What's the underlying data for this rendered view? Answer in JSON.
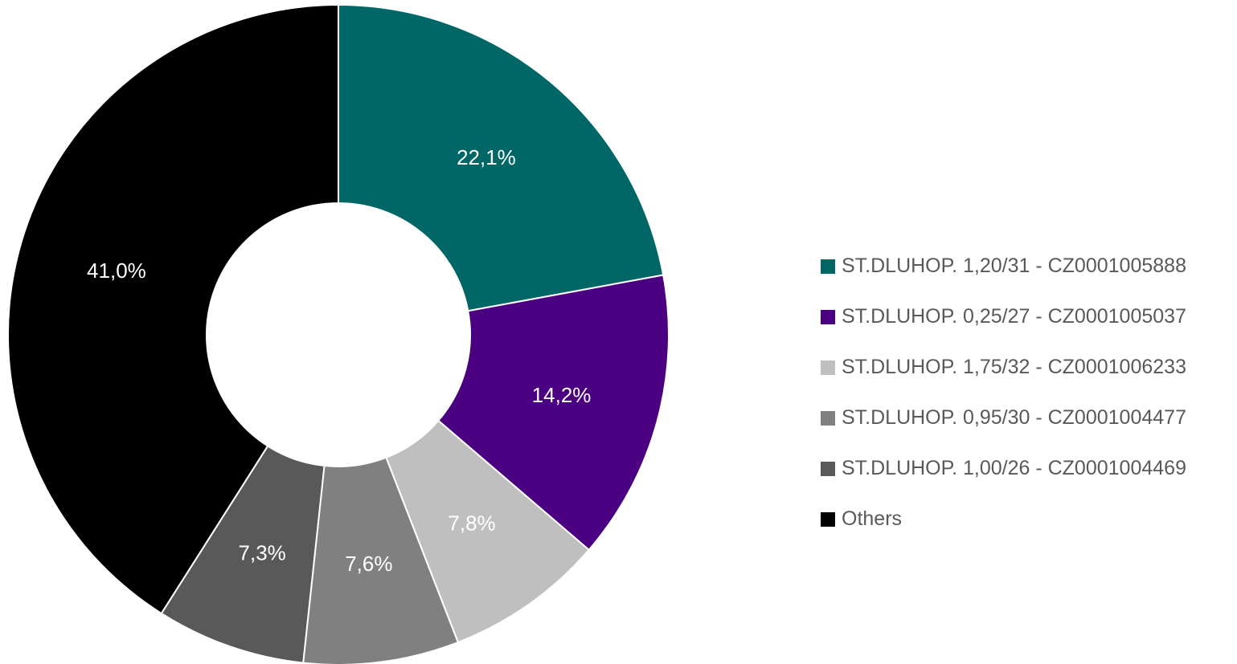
{
  "chart_data": {
    "type": "pie",
    "variant": "donut",
    "title": "",
    "legend_position": "right",
    "categories": [
      "ST.DLUHOP. 1,20/31 - CZ0001005888",
      "ST.DLUHOP. 0,25/27 - CZ0001005037",
      "ST.DLUHOP. 1,75/32 - CZ0001006233",
      "ST.DLUHOP. 0,95/30 - CZ0001004477",
      "ST.DLUHOP. 1,00/26 - CZ0001004469",
      "Others"
    ],
    "values": [
      22.1,
      14.2,
      7.8,
      7.6,
      7.3,
      41.0
    ],
    "labels": [
      "22,1%",
      "14,2%",
      "7,8%",
      "7,6%",
      "7,3%",
      "41,0%"
    ],
    "colors": [
      "#006666",
      "#4B0082",
      "#BFBFBF",
      "#808080",
      "#595959",
      "#000000"
    ]
  }
}
